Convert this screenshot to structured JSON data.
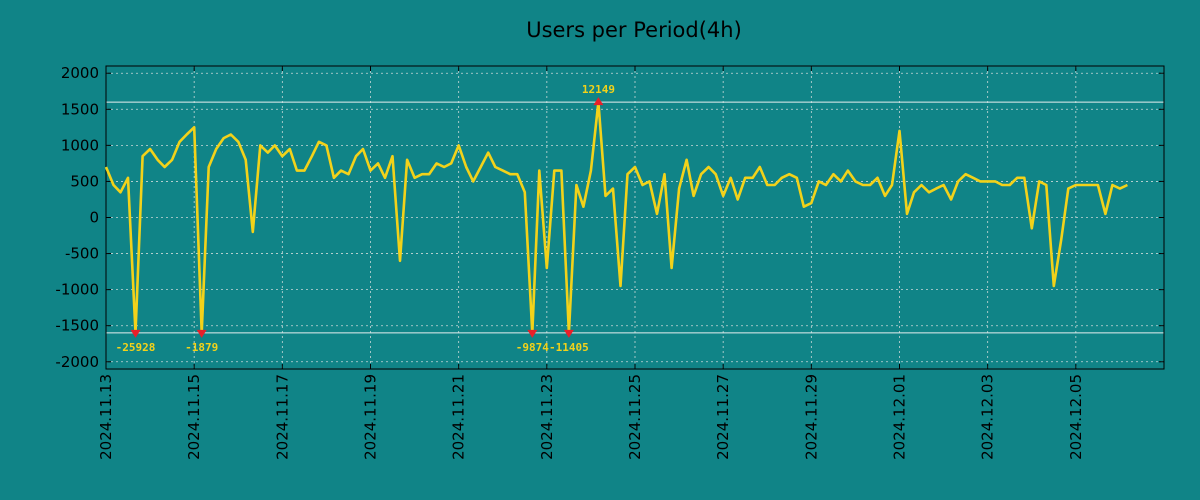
{
  "chart_data": {
    "type": "line",
    "title": "Users per Period(4h)",
    "xlabel": "",
    "ylabel": "",
    "ylim": [
      -2100,
      2100
    ],
    "xlim": [
      0,
      24
    ],
    "yticks": [
      2000,
      1500,
      1000,
      500,
      0,
      -500,
      -1000,
      -1500,
      -2000
    ],
    "ytick_labels": [
      "2000",
      "1500",
      "1000",
      "500",
      "0",
      "-500",
      "-1000",
      "-1500",
      "-2000"
    ],
    "xticks": [
      0,
      2,
      4,
      6,
      8,
      10,
      12,
      14,
      16,
      18,
      20,
      22
    ],
    "xtick_labels": [
      "2024.11.13",
      "2024.11.15",
      "2024.11.17",
      "2024.11.19",
      "2024.11.21",
      "2024.11.23",
      "2024.11.25",
      "2024.11.27",
      "2024.11.29",
      "2024.12.01",
      "2024.12.03",
      "2024.12.05"
    ],
    "reference_lines": [
      1600,
      -1600
    ],
    "grid": true,
    "colors": {
      "background": "#108487",
      "line": "#f2d21a",
      "marker": "#e8202a",
      "grid": "#c8d8d8",
      "ref_line": "#e6eeee"
    },
    "series": [
      {
        "name": "Users",
        "x": [
          0.0,
          0.17,
          0.33,
          0.5,
          0.67,
          0.83,
          1.0,
          1.17,
          1.33,
          1.5,
          1.67,
          1.83,
          2.0,
          2.17,
          2.33,
          2.5,
          2.67,
          2.83,
          3.0,
          3.17,
          3.33,
          3.5,
          3.67,
          3.83,
          4.0,
          4.17,
          4.33,
          4.5,
          4.67,
          4.83,
          5.0,
          5.17,
          5.33,
          5.5,
          5.67,
          5.83,
          6.0,
          6.17,
          6.33,
          6.5,
          6.67,
          6.83,
          7.0,
          7.17,
          7.33,
          7.5,
          7.67,
          7.83,
          8.0,
          8.17,
          8.33,
          8.5,
          8.67,
          8.83,
          9.0,
          9.17,
          9.33,
          9.5,
          9.67,
          9.83,
          10.0,
          10.17,
          10.33,
          10.5,
          10.67,
          10.83,
          11.0,
          11.17,
          11.33,
          11.5,
          11.67,
          11.83,
          12.0,
          12.17,
          12.33,
          12.5,
          12.67,
          12.83,
          13.0,
          13.17,
          13.33,
          13.5,
          13.67,
          13.83,
          14.0,
          14.17,
          14.33,
          14.5,
          14.67,
          14.83,
          15.0,
          15.17,
          15.33,
          15.5,
          15.67,
          15.83,
          16.0,
          16.17,
          16.33,
          16.5,
          16.67,
          16.83,
          17.0,
          17.17,
          17.33,
          17.5,
          17.67,
          17.83,
          18.0,
          18.17,
          18.33,
          18.5,
          18.67,
          18.83,
          19.0,
          19.17,
          19.33,
          19.5,
          19.67,
          19.83,
          20.0,
          20.17,
          20.33,
          20.5,
          20.67,
          20.83,
          21.0,
          21.17,
          21.33,
          21.5,
          21.67,
          21.83,
          22.0,
          22.17,
          22.33,
          22.5,
          22.67,
          22.83,
          23.0,
          23.17
        ],
        "values": [
          700,
          450,
          350,
          550,
          -1600,
          850,
          950,
          800,
          700,
          800,
          1050,
          1150,
          1250,
          -1600,
          700,
          950,
          1100,
          1150,
          1050,
          800,
          -200,
          1000,
          900,
          1000,
          850,
          950,
          650,
          650,
          850,
          1050,
          1000,
          550,
          650,
          600,
          850,
          950,
          650,
          750,
          550,
          850,
          -600,
          800,
          550,
          600,
          600,
          750,
          700,
          750,
          1000,
          700,
          500,
          700,
          900,
          700,
          650,
          600,
          600,
          350,
          -1600,
          650,
          -700,
          650,
          650,
          -1600,
          450,
          150,
          650,
          1600,
          300,
          400,
          -950,
          600,
          700,
          450,
          500,
          50,
          600,
          -700,
          400,
          800,
          300,
          600,
          700,
          600,
          300,
          550,
          250,
          550,
          550,
          700,
          450,
          450,
          550,
          600,
          550,
          150,
          200,
          500,
          450,
          600,
          500,
          650,
          500,
          450,
          450,
          550,
          300,
          450,
          1200,
          50,
          350,
          450,
          350,
          400,
          450,
          250,
          500,
          600,
          550,
          500,
          500,
          500,
          450,
          450,
          550,
          550,
          -150,
          500,
          450,
          -950,
          -300,
          400,
          450,
          450,
          450,
          450,
          50,
          450,
          400,
          450
        ]
      }
    ],
    "annotations": [
      {
        "x": 0.67,
        "y": -1600,
        "label": "-25928",
        "pos": "below"
      },
      {
        "x": 2.17,
        "y": -1600,
        "label": "-1879",
        "pos": "below"
      },
      {
        "x": 9.67,
        "y": -1600,
        "label": "-9874",
        "pos": "below"
      },
      {
        "x": 10.5,
        "y": -1600,
        "label": "-11405",
        "pos": "below"
      },
      {
        "x": 11.17,
        "y": 1600,
        "label": "12149",
        "pos": "above"
      }
    ]
  }
}
